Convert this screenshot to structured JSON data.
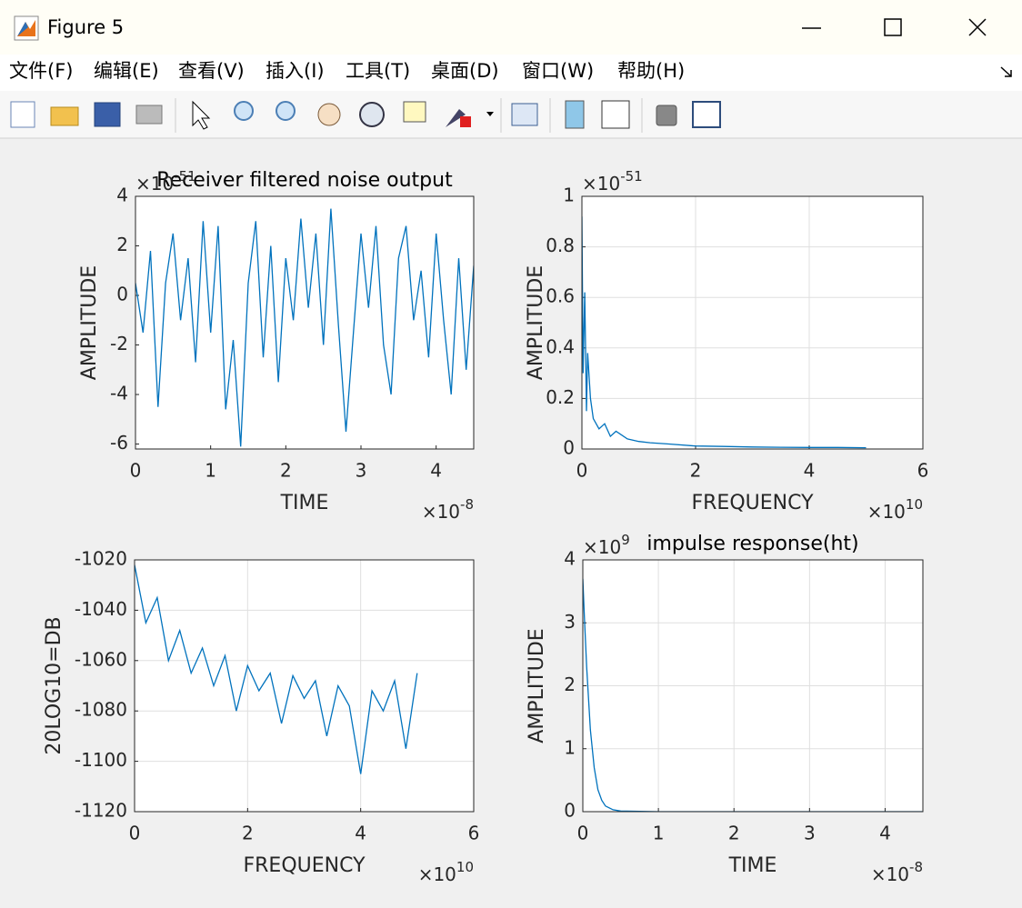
{
  "window": {
    "title": "Figure 5"
  },
  "menu": [
    "文件(F)",
    "编辑(E)",
    "查看(V)",
    "插入(I)",
    "工具(T)",
    "桌面(D)",
    "窗口(W)",
    "帮助(H)"
  ],
  "chart_data": [
    {
      "type": "line",
      "title": "Receiver filtered noise output",
      "xlabel": "TIME",
      "ylabel": "AMPLITUDE",
      "color": "#0072bd",
      "grid": false,
      "x_scale_label": {
        "base": "×10",
        "exponent": "-8"
      },
      "y_scale_label": {
        "base": "×10",
        "exponent": "-51"
      },
      "xlim": [
        0,
        4.5
      ],
      "xticks": [
        0,
        1,
        2,
        3,
        4
      ],
      "ylim": [
        -6.2,
        4
      ],
      "yticks": [
        -6,
        -4,
        -2,
        0,
        2,
        4
      ],
      "x": [
        0,
        0.1,
        0.2,
        0.3,
        0.4,
        0.5,
        0.6,
        0.7,
        0.8,
        0.9,
        1,
        1.1,
        1.2,
        1.3,
        1.4,
        1.5,
        1.6,
        1.7,
        1.8,
        1.9,
        2,
        2.1,
        2.2,
        2.3,
        2.4,
        2.5,
        2.6,
        2.7,
        2.8,
        2.9,
        3,
        3.1,
        3.2,
        3.3,
        3.4,
        3.5,
        3.6,
        3.7,
        3.8,
        3.9,
        4,
        4.1,
        4.2,
        4.3,
        4.4,
        4.5
      ],
      "values": [
        0.5,
        -1.5,
        1.8,
        -4.5,
        0.5,
        2.5,
        -1.0,
        1.5,
        -2.7,
        3.0,
        -1.5,
        2.8,
        -4.6,
        -1.8,
        -6.1,
        0.5,
        3.0,
        -2.5,
        2.0,
        -3.5,
        1.5,
        -1.0,
        3.1,
        -0.5,
        2.5,
        -2.0,
        3.5,
        -1.2,
        -5.5,
        -1.5,
        2.5,
        -0.5,
        2.8,
        -2.0,
        -4.0,
        1.5,
        2.8,
        -1.0,
        1.0,
        -2.5,
        2.5,
        -1.0,
        -4.0,
        1.5,
        -3.0,
        1.2
      ]
    },
    {
      "type": "line",
      "xlabel": "FREQUENCY",
      "ylabel": "AMPLITUDE",
      "color": "#0072bd",
      "grid": true,
      "x_scale_label": {
        "base": "×10",
        "exponent": "10"
      },
      "y_scale_label": {
        "base": "×10",
        "exponent": "-51"
      },
      "xlim": [
        0,
        6
      ],
      "xticks": [
        0,
        2,
        4,
        6
      ],
      "ylim": [
        0,
        1
      ],
      "yticks": [
        0,
        0.2,
        0.4,
        0.6,
        0.8,
        1
      ],
      "x": [
        0,
        0.02,
        0.05,
        0.08,
        0.1,
        0.15,
        0.2,
        0.3,
        0.4,
        0.5,
        0.6,
        0.8,
        1,
        1.2,
        1.5,
        2,
        2.5,
        3,
        3.5,
        4,
        4.5,
        5
      ],
      "values": [
        0.92,
        0.3,
        0.62,
        0.15,
        0.38,
        0.2,
        0.12,
        0.08,
        0.1,
        0.05,
        0.07,
        0.04,
        0.03,
        0.025,
        0.02,
        0.012,
        0.01,
        0.008,
        0.007,
        0.006,
        0.006,
        0.005
      ]
    },
    {
      "type": "line",
      "xlabel": "FREQUENCY",
      "ylabel": "20LOG10=DB",
      "color": "#0072bd",
      "grid": true,
      "x_scale_label": {
        "base": "×10",
        "exponent": "10"
      },
      "xlim": [
        0,
        6
      ],
      "xticks": [
        0,
        2,
        4,
        6
      ],
      "ylim": [
        -1120,
        -1020
      ],
      "yticks": [
        -1120,
        -1100,
        -1080,
        -1060,
        -1040,
        -1020
      ],
      "x": [
        0,
        0.2,
        0.4,
        0.6,
        0.8,
        1,
        1.2,
        1.4,
        1.6,
        1.8,
        2,
        2.2,
        2.4,
        2.6,
        2.8,
        3,
        3.2,
        3.4,
        3.6,
        3.8,
        4,
        4.2,
        4.4,
        4.6,
        4.8,
        5
      ],
      "values": [
        -1022,
        -1045,
        -1035,
        -1060,
        -1048,
        -1065,
        -1055,
        -1070,
        -1058,
        -1080,
        -1062,
        -1072,
        -1065,
        -1085,
        -1066,
        -1075,
        -1068,
        -1090,
        -1070,
        -1078,
        -1105,
        -1072,
        -1080,
        -1068,
        -1095,
        -1065
      ]
    },
    {
      "type": "line",
      "title": "impulse response(ht)",
      "xlabel": "TIME",
      "ylabel": "AMPLITUDE",
      "color": "#0072bd",
      "grid": true,
      "x_scale_label": {
        "base": "×10",
        "exponent": "-8"
      },
      "y_scale_label": {
        "base": "×10",
        "exponent": "9"
      },
      "xlim": [
        0,
        4.5
      ],
      "xticks": [
        0,
        1,
        2,
        3,
        4
      ],
      "ylim": [
        0,
        4
      ],
      "yticks": [
        0,
        1,
        2,
        3,
        4
      ],
      "x": [
        0,
        0.02,
        0.05,
        0.1,
        0.15,
        0.2,
        0.25,
        0.3,
        0.4,
        0.5,
        1,
        2,
        3,
        4,
        4.5
      ],
      "values": [
        3.7,
        3.1,
        2.3,
        1.3,
        0.7,
        0.35,
        0.18,
        0.09,
        0.03,
        0.01,
        0,
        0,
        0,
        0,
        0
      ]
    }
  ]
}
